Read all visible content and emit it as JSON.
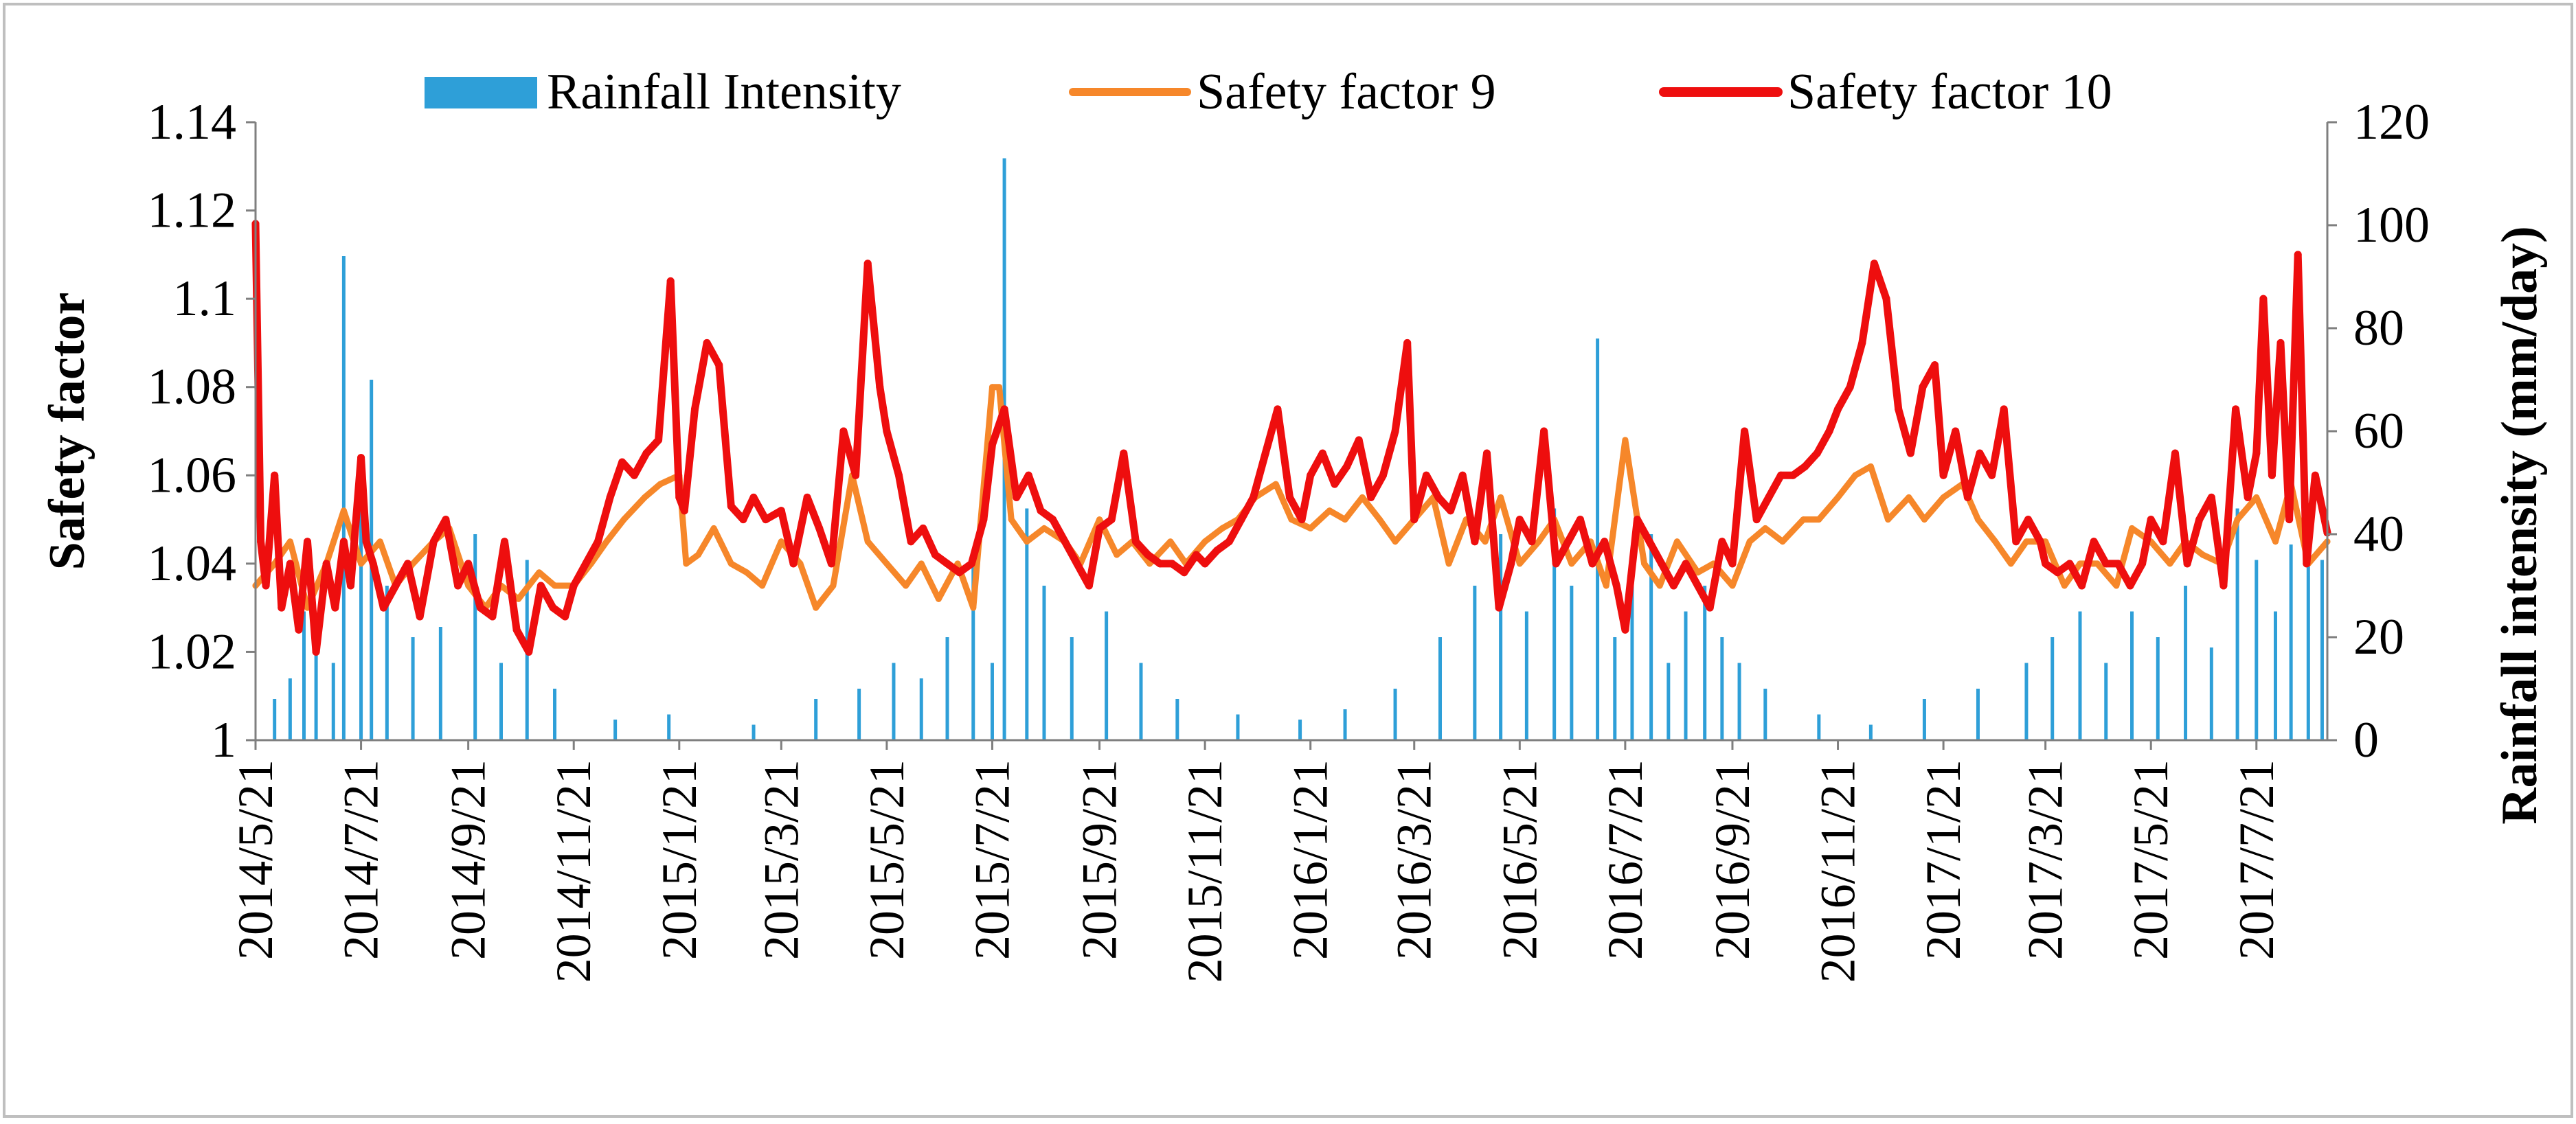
{
  "chart_data": {
    "type": "line",
    "title": "",
    "ylabel": "Safety factor",
    "y2label": "Rainfall intensity (mm/day)",
    "ylim": [
      1.0,
      1.14
    ],
    "y2lim": [
      0,
      120
    ],
    "yticks": [
      "1",
      "1.02",
      "1.04",
      "1.06",
      "1.08",
      "1.1",
      "1.12",
      "1.14"
    ],
    "y2ticks": [
      "0",
      "20",
      "40",
      "60",
      "80",
      "100",
      "120"
    ],
    "x_start": "2014/5/21",
    "x_end": "2017/8/31",
    "xticks": [
      "2014/5/21",
      "2014/7/21",
      "2014/9/21",
      "2014/11/21",
      "2015/1/21",
      "2015/3/21",
      "2015/5/21",
      "2015/7/21",
      "2015/9/21",
      "2015/11/21",
      "2016/1/21",
      "2016/3/21",
      "2016/5/21",
      "2016/7/21",
      "2016/9/21",
      "2016/11/21",
      "2017/1/21",
      "2017/3/21",
      "2017/5/21",
      "2017/7/21"
    ],
    "legend_position": "top",
    "grid": false,
    "colors": {
      "rainfall": "#2E9FD8",
      "sf9": "#F6872A",
      "sf10": "#EE0E0E"
    },
    "series": [
      {
        "name": "Safety factor 10",
        "axis": "left",
        "x": [
          "2014/5/21",
          "2014/5/24",
          "2014/5/27",
          "2014/6/1",
          "2014/6/5",
          "2014/6/10",
          "2014/6/15",
          "2014/6/20",
          "2014/6/25",
          "2014/7/1",
          "2014/7/6",
          "2014/7/11",
          "2014/7/15",
          "2014/7/21",
          "2014/7/24",
          "2014/7/28",
          "2014/8/3",
          "2014/8/10",
          "2014/8/17",
          "2014/8/24",
          "2014/9/1",
          "2014/9/8",
          "2014/9/15",
          "2014/9/21",
          "2014/9/28",
          "2014/10/5",
          "2014/10/12",
          "2014/10/19",
          "2014/10/26",
          "2014/11/2",
          "2014/11/9",
          "2014/11/16",
          "2014/11/21",
          "2014/11/28",
          "2014/12/5",
          "2014/12/12",
          "2014/12/19",
          "2014/12/26",
          "2015/1/2",
          "2015/1/9",
          "2015/1/16",
          "2015/1/21",
          "2015/1/24",
          "2015/1/30",
          "2015/2/6",
          "2015/2/13",
          "2015/2/20",
          "2015/2/27",
          "2015/3/5",
          "2015/3/12",
          "2015/3/21",
          "2015/3/28",
          "2015/4/5",
          "2015/4/12",
          "2015/4/19",
          "2015/4/26",
          "2015/5/3",
          "2015/5/10",
          "2015/5/17",
          "2015/5/21",
          "2015/5/28",
          "2015/6/4",
          "2015/6/11",
          "2015/6/18",
          "2015/6/25",
          "2015/7/2",
          "2015/7/9",
          "2015/7/16",
          "2015/7/21",
          "2015/7/28",
          "2015/8/4",
          "2015/8/11",
          "2015/8/18",
          "2015/8/25",
          "2015/9/1",
          "2015/9/8",
          "2015/9/15",
          "2015/9/21",
          "2015/9/28",
          "2015/10/5",
          "2015/10/12",
          "2015/10/19",
          "2015/10/26",
          "2015/11/2",
          "2015/11/9",
          "2015/11/16",
          "2015/11/21",
          "2015/11/28",
          "2015/12/5",
          "2015/12/12",
          "2015/12/19",
          "2015/12/26",
          "2016/1/2",
          "2016/1/9",
          "2016/1/16",
          "2016/1/21",
          "2016/1/28",
          "2016/2/4",
          "2016/2/11",
          "2016/2/18",
          "2016/2/25",
          "2016/3/3",
          "2016/3/10",
          "2016/3/17",
          "2016/3/21",
          "2016/3/28",
          "2016/4/4",
          "2016/4/11",
          "2016/4/18",
          "2016/4/25",
          "2016/5/2",
          "2016/5/9",
          "2016/5/16",
          "2016/5/21",
          "2016/5/28",
          "2016/6/4",
          "2016/6/11",
          "2016/6/18",
          "2016/6/25",
          "2016/7/2",
          "2016/7/9",
          "2016/7/16",
          "2016/7/21",
          "2016/7/28",
          "2016/8/4",
          "2016/8/11",
          "2016/8/18",
          "2016/8/25",
          "2016/9/1",
          "2016/9/8",
          "2016/9/15",
          "2016/9/21",
          "2016/9/28",
          "2016/10/5",
          "2016/10/12",
          "2016/10/19",
          "2016/10/26",
          "2016/11/2",
          "2016/11/9",
          "2016/11/16",
          "2016/11/21",
          "2016/11/28",
          "2016/12/5",
          "2016/12/12",
          "2016/12/19",
          "2016/12/26",
          "2017/1/2",
          "2017/1/9",
          "2017/1/16",
          "2017/1/21",
          "2017/1/28",
          "2017/2/4",
          "2017/2/11",
          "2017/2/18",
          "2017/2/25",
          "2017/3/4",
          "2017/3/11",
          "2017/3/18",
          "2017/3/21",
          "2017/3/28",
          "2017/4/4",
          "2017/4/11",
          "2017/4/18",
          "2017/4/25",
          "2017/5/2",
          "2017/5/9",
          "2017/5/16",
          "2017/5/21",
          "2017/5/28",
          "2017/6/4",
          "2017/6/11",
          "2017/6/18",
          "2017/6/25",
          "2017/7/2",
          "2017/7/9",
          "2017/7/16",
          "2017/7/21",
          "2017/7/25",
          "2017/7/30",
          "2017/8/4",
          "2017/8/9",
          "2017/8/14",
          "2017/8/19",
          "2017/8/24",
          "2017/8/31"
        ],
        "values": [
          1.117,
          1.045,
          1.035,
          1.06,
          1.03,
          1.04,
          1.025,
          1.045,
          1.02,
          1.04,
          1.03,
          1.045,
          1.035,
          1.064,
          1.045,
          1.04,
          1.03,
          1.035,
          1.04,
          1.028,
          1.045,
          1.05,
          1.035,
          1.04,
          1.03,
          1.028,
          1.045,
          1.025,
          1.02,
          1.035,
          1.03,
          1.028,
          1.035,
          1.04,
          1.045,
          1.055,
          1.063,
          1.06,
          1.065,
          1.068,
          1.104,
          1.055,
          1.052,
          1.075,
          1.09,
          1.085,
          1.053,
          1.05,
          1.055,
          1.05,
          1.052,
          1.04,
          1.055,
          1.048,
          1.04,
          1.07,
          1.06,
          1.108,
          1.08,
          1.07,
          1.06,
          1.045,
          1.048,
          1.042,
          1.04,
          1.038,
          1.04,
          1.05,
          1.067,
          1.075,
          1.055,
          1.06,
          1.052,
          1.05,
          1.045,
          1.04,
          1.035,
          1.048,
          1.05,
          1.065,
          1.045,
          1.042,
          1.04,
          1.04,
          1.038,
          1.042,
          1.04,
          1.043,
          1.045,
          1.05,
          1.055,
          1.065,
          1.075,
          1.055,
          1.05,
          1.06,
          1.065,
          1.058,
          1.062,
          1.068,
          1.055,
          1.06,
          1.07,
          1.09,
          1.05,
          1.06,
          1.055,
          1.052,
          1.06,
          1.045,
          1.065,
          1.03,
          1.04,
          1.05,
          1.045,
          1.07,
          1.04,
          1.045,
          1.05,
          1.04,
          1.045,
          1.035,
          1.025,
          1.05,
          1.045,
          1.04,
          1.035,
          1.04,
          1.035,
          1.03,
          1.045,
          1.04,
          1.07,
          1.05,
          1.055,
          1.06,
          1.06,
          1.062,
          1.065,
          1.07,
          1.075,
          1.08,
          1.09,
          1.108,
          1.1,
          1.075,
          1.065,
          1.08,
          1.085,
          1.06,
          1.07,
          1.055,
          1.065,
          1.06,
          1.075,
          1.045,
          1.05,
          1.045,
          1.04,
          1.038,
          1.04,
          1.035,
          1.045,
          1.04,
          1.04,
          1.035,
          1.04,
          1.05,
          1.045,
          1.065,
          1.04,
          1.05,
          1.055,
          1.035,
          1.075,
          1.055,
          1.065,
          1.1,
          1.06,
          1.09,
          1.05,
          1.11,
          1.04,
          1.06,
          1.047
        ]
      },
      {
        "name": "Safety factor 9",
        "axis": "left",
        "x": [
          "2014/5/21",
          "2014/6/1",
          "2014/6/10",
          "2014/6/20",
          "2014/7/1",
          "2014/7/11",
          "2014/7/21",
          "2014/8/1",
          "2014/8/10",
          "2014/8/20",
          "2014/9/1",
          "2014/9/10",
          "2014/9/21",
          "2014/10/1",
          "2014/10/10",
          "2014/10/20",
          "2014/11/1",
          "2014/11/10",
          "2014/11/21",
          "2014/12/1",
          "2014/12/10",
          "2014/12/20",
          "2015/1/1",
          "2015/1/10",
          "2015/1/21",
          "2015/1/25",
          "2015/2/1",
          "2015/2/10",
          "2015/2/20",
          "2015/3/1",
          "2015/3/10",
          "2015/3/21",
          "2015/4/1",
          "2015/4/10",
          "2015/4/20",
          "2015/5/1",
          "2015/5/10",
          "2015/5/21",
          "2015/6/1",
          "2015/6/10",
          "2015/6/20",
          "2015/7/1",
          "2015/7/10",
          "2015/7/21",
          "2015/7/25",
          "2015/8/1",
          "2015/8/10",
          "2015/8/20",
          "2015/9/1",
          "2015/9/10",
          "2015/9/21",
          "2015/10/1",
          "2015/10/10",
          "2015/10/20",
          "2015/11/1",
          "2015/11/10",
          "2015/11/21",
          "2015/12/1",
          "2015/12/10",
          "2015/12/20",
          "2016/1/1",
          "2016/1/10",
          "2016/1/21",
          "2016/2/1",
          "2016/2/10",
          "2016/2/20",
          "2016/3/1",
          "2016/3/10",
          "2016/3/21",
          "2016/4/1",
          "2016/4/10",
          "2016/4/20",
          "2016/5/1",
          "2016/5/10",
          "2016/5/21",
          "2016/6/1",
          "2016/6/10",
          "2016/6/20",
          "2016/7/1",
          "2016/7/10",
          "2016/7/21",
          "2016/8/1",
          "2016/8/10",
          "2016/8/20",
          "2016/9/1",
          "2016/9/10",
          "2016/9/21",
          "2016/10/1",
          "2016/10/10",
          "2016/10/20",
          "2016/11/1",
          "2016/11/10",
          "2016/11/21",
          "2016/12/1",
          "2016/12/10",
          "2016/12/20",
          "2017/1/1",
          "2017/1/10",
          "2017/1/21",
          "2017/2/1",
          "2017/2/10",
          "2017/2/20",
          "2017/3/1",
          "2017/3/10",
          "2017/3/21",
          "2017/4/1",
          "2017/4/10",
          "2017/4/20",
          "2017/5/1",
          "2017/5/10",
          "2017/5/21",
          "2017/6/1",
          "2017/6/10",
          "2017/6/20",
          "2017/7/1",
          "2017/7/10",
          "2017/7/21",
          "2017/8/1",
          "2017/8/10",
          "2017/8/20",
          "2017/8/31"
        ],
        "values": [
          1.035,
          1.04,
          1.045,
          1.03,
          1.04,
          1.052,
          1.04,
          1.045,
          1.035,
          1.04,
          1.045,
          1.048,
          1.035,
          1.03,
          1.035,
          1.032,
          1.038,
          1.035,
          1.035,
          1.04,
          1.045,
          1.05,
          1.055,
          1.058,
          1.06,
          1.04,
          1.042,
          1.048,
          1.04,
          1.038,
          1.035,
          1.045,
          1.04,
          1.03,
          1.035,
          1.06,
          1.045,
          1.04,
          1.035,
          1.04,
          1.032,
          1.04,
          1.03,
          1.08,
          1.08,
          1.05,
          1.045,
          1.048,
          1.045,
          1.04,
          1.05,
          1.042,
          1.045,
          1.04,
          1.045,
          1.04,
          1.045,
          1.048,
          1.05,
          1.055,
          1.058,
          1.05,
          1.048,
          1.052,
          1.05,
          1.055,
          1.05,
          1.045,
          1.05,
          1.055,
          1.04,
          1.05,
          1.045,
          1.055,
          1.04,
          1.045,
          1.05,
          1.04,
          1.045,
          1.035,
          1.068,
          1.04,
          1.035,
          1.045,
          1.038,
          1.04,
          1.035,
          1.045,
          1.048,
          1.045,
          1.05,
          1.05,
          1.055,
          1.06,
          1.062,
          1.05,
          1.055,
          1.05,
          1.055,
          1.058,
          1.05,
          1.045,
          1.04,
          1.045,
          1.045,
          1.035,
          1.04,
          1.04,
          1.035,
          1.048,
          1.045,
          1.04,
          1.045,
          1.042,
          1.04,
          1.05,
          1.055,
          1.045,
          1.058,
          1.04,
          1.045
        ]
      },
      {
        "name": "Rainfall Intensity",
        "axis": "right",
        "type": "bar",
        "x": [
          "2014/6/1",
          "2014/6/10",
          "2014/6/18",
          "2014/6/25",
          "2014/7/5",
          "2014/7/11",
          "2014/7/21",
          "2014/7/27",
          "2014/8/5",
          "2014/8/20",
          "2014/9/5",
          "2014/9/25",
          "2014/10/10",
          "2014/10/25",
          "2014/11/10",
          "2014/12/15",
          "2015/1/15",
          "2015/3/5",
          "2015/4/10",
          "2015/5/5",
          "2015/5/25",
          "2015/6/10",
          "2015/6/25",
          "2015/7/10",
          "2015/7/21",
          "2015/7/28",
          "2015/8/10",
          "2015/8/20",
          "2015/9/5",
          "2015/9/25",
          "2015/10/15",
          "2015/11/5",
          "2015/12/10",
          "2016/1/15",
          "2016/2/10",
          "2016/3/10",
          "2016/4/5",
          "2016/4/25",
          "2016/5/10",
          "2016/5/25",
          "2016/6/10",
          "2016/6/20",
          "2016/7/5",
          "2016/7/15",
          "2016/7/25",
          "2016/8/5",
          "2016/8/15",
          "2016/8/25",
          "2016/9/5",
          "2016/9/15",
          "2016/9/25",
          "2016/10/10",
          "2016/11/10",
          "2016/12/10",
          "2017/1/10",
          "2017/2/10",
          "2017/3/10",
          "2017/3/25",
          "2017/4/10",
          "2017/4/25",
          "2017/5/10",
          "2017/5/25",
          "2017/6/10",
          "2017/6/25",
          "2017/7/10",
          "2017/7/21",
          "2017/8/1",
          "2017/8/10",
          "2017/8/20",
          "2017/8/28"
        ],
        "values": [
          8,
          12,
          25,
          18,
          15,
          94,
          55,
          70,
          30,
          20,
          22,
          40,
          15,
          35,
          10,
          4,
          5,
          3,
          8,
          10,
          15,
          12,
          20,
          35,
          15,
          113,
          45,
          30,
          20,
          25,
          15,
          8,
          5,
          4,
          6,
          10,
          20,
          30,
          40,
          25,
          45,
          30,
          78,
          20,
          35,
          40,
          15,
          25,
          30,
          20,
          15,
          10,
          5,
          3,
          8,
          10,
          15,
          20,
          25,
          15,
          25,
          20,
          30,
          18,
          45,
          35,
          25,
          38,
          40,
          35
        ]
      }
    ]
  }
}
